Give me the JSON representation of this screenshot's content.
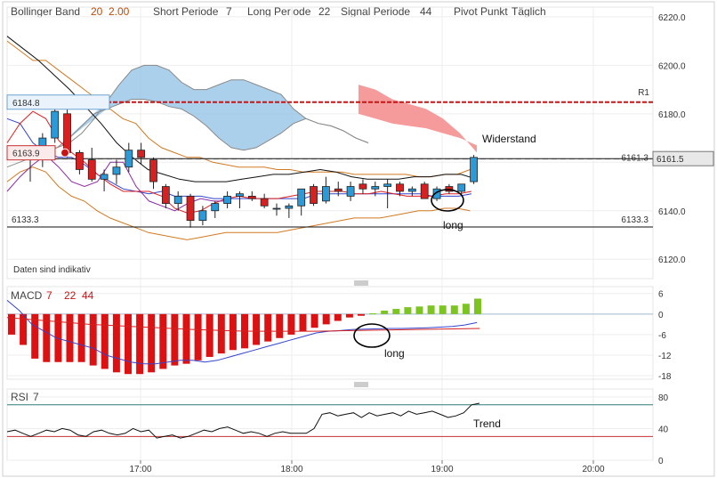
{
  "header": {
    "bollinger_label": "Bollinger Band",
    "bollinger_period": "20",
    "bollinger_dev": "2.00",
    "short_label": "Short Periode",
    "short_value": "7",
    "long_label": "Long Periode",
    "long_value": "22",
    "signal_label": "Signal Periode",
    "signal_value": "44",
    "pivot_label": "Pivot Punkt",
    "pivot_value": "Täglich"
  },
  "colors": {
    "up": "#2b9ad8",
    "down": "#d92020",
    "cloud_bull": "#8fc0e4",
    "cloud_bear": "#f48a8a",
    "macd_pos": "#7cc520",
    "macd_neg": "#dd1111",
    "pivot": "#c81414",
    "accent": "#c04a00"
  },
  "chart_data": [
    {
      "type": "candlestick",
      "title": "",
      "ylim": [
        6112,
        6224
      ],
      "yticks": [
        6120.0,
        6140.0,
        6160.0,
        6180.0,
        6200.0,
        6220.0
      ],
      "x_ticks": [
        "17:00",
        "18:00",
        "19:00",
        "20:00"
      ],
      "candles": [
        {
          "o": 6164,
          "h": 6167,
          "l": 6152,
          "c": 6166
        },
        {
          "o": 6166,
          "h": 6172,
          "l": 6158,
          "c": 6170
        },
        {
          "o": 6170,
          "h": 6184,
          "l": 6168,
          "c": 6181
        },
        {
          "o": 6180,
          "h": 6182,
          "l": 6162,
          "c": 6164
        },
        {
          "o": 6164,
          "h": 6165,
          "l": 6155,
          "c": 6157
        },
        {
          "o": 6161,
          "h": 6166,
          "l": 6152,
          "c": 6153
        },
        {
          "o": 6153,
          "h": 6157,
          "l": 6148,
          "c": 6155
        },
        {
          "o": 6155,
          "h": 6161,
          "l": 6151,
          "c": 6158
        },
        {
          "o": 6158,
          "h": 6168,
          "l": 6156,
          "c": 6165
        },
        {
          "o": 6165,
          "h": 6168,
          "l": 6159,
          "c": 6162
        },
        {
          "o": 6161,
          "h": 6162,
          "l": 6149,
          "c": 6152
        },
        {
          "o": 6150,
          "h": 6151,
          "l": 6141,
          "c": 6143
        },
        {
          "o": 6143,
          "h": 6148,
          "l": 6140,
          "c": 6146
        },
        {
          "o": 6146,
          "h": 6147,
          "l": 6133,
          "c": 6136
        },
        {
          "o": 6136,
          "h": 6142,
          "l": 6134,
          "c": 6140
        },
        {
          "o": 6140,
          "h": 6144,
          "l": 6137,
          "c": 6143
        },
        {
          "o": 6143,
          "h": 6148,
          "l": 6141,
          "c": 6146
        },
        {
          "o": 6146,
          "h": 6148,
          "l": 6141,
          "c": 6147
        },
        {
          "o": 6146,
          "h": 6148,
          "l": 6144,
          "c": 6145
        },
        {
          "o": 6145,
          "h": 6147,
          "l": 6141,
          "c": 6142
        },
        {
          "o": 6141,
          "h": 6143,
          "l": 6138,
          "c": 6141
        },
        {
          "o": 6141,
          "h": 6143,
          "l": 6137,
          "c": 6142
        },
        {
          "o": 6142,
          "h": 6149,
          "l": 6138,
          "c": 6149
        },
        {
          "o": 6150,
          "h": 6151,
          "l": 6142,
          "c": 6143
        },
        {
          "o": 6144,
          "h": 6154,
          "l": 6143,
          "c": 6150
        },
        {
          "o": 6149,
          "h": 6152,
          "l": 6146,
          "c": 6148
        },
        {
          "o": 6146,
          "h": 6152,
          "l": 6144,
          "c": 6150
        },
        {
          "o": 6151,
          "h": 6153,
          "l": 6147,
          "c": 6149
        },
        {
          "o": 6149,
          "h": 6152,
          "l": 6146,
          "c": 6150
        },
        {
          "o": 6150,
          "h": 6153,
          "l": 6141,
          "c": 6151
        },
        {
          "o": 6151,
          "h": 6152,
          "l": 6146,
          "c": 6148
        },
        {
          "o": 6148,
          "h": 6150,
          "l": 6146,
          "c": 6149
        },
        {
          "o": 6151,
          "h": 6152,
          "l": 6145,
          "c": 6145
        },
        {
          "o": 6145,
          "h": 6150,
          "l": 6144,
          "c": 6149
        },
        {
          "o": 6150,
          "h": 6151,
          "l": 6147,
          "c": 6148
        },
        {
          "o": 6148,
          "h": 6151,
          "l": 6146,
          "c": 6151
        },
        {
          "o": 6152,
          "h": 6163,
          "l": 6151,
          "c": 6162
        }
      ],
      "pivot_r1": {
        "label": "R1",
        "value": 6184.8
      },
      "last_price": 6161.5,
      "levels": [
        {
          "label": "6184.8",
          "value": 6184.8
        },
        {
          "label": "6163.9",
          "value": 6163.9
        },
        {
          "label": "6161.3",
          "value": 6161.3
        },
        {
          "label": "6133.3",
          "value": 6133.3
        }
      ],
      "bollinger_upper": [
        6210,
        6206,
        6202,
        6202,
        6198,
        6194,
        6190,
        6186,
        6182,
        6178,
        6176,
        6170,
        6166,
        6164,
        6162,
        6162,
        6160,
        6159,
        6158,
        6158,
        6158,
        6157,
        6157,
        6156,
        6156,
        6156,
        6156,
        6155,
        6155,
        6155,
        6155,
        6155,
        6154,
        6154,
        6155,
        6155,
        6157
      ],
      "bollinger_lower": [
        6152,
        6156,
        6158,
        6156,
        6150,
        6146,
        6144,
        6140,
        6137,
        6135,
        6133,
        6131,
        6130,
        6129,
        6128,
        6129,
        6130,
        6131,
        6131,
        6131,
        6131,
        6131,
        6132,
        6133,
        6134,
        6135,
        6136,
        6137,
        6137,
        6137,
        6138,
        6139,
        6140,
        6140,
        6141,
        6141,
        6140
      ],
      "cloud_a": [
        6158,
        6160,
        6162,
        6165,
        6166,
        6168,
        6172,
        6178,
        6185,
        6192,
        6198,
        6200,
        6200,
        6198,
        6193,
        6190,
        6190,
        6192,
        6194,
        6194,
        6192,
        6190,
        6188,
        6182,
        6178,
        6176,
        6175,
        6173,
        6170,
        6168
      ],
      "cloud_b": [
        6164,
        6164,
        6163,
        6164,
        6166,
        6170,
        6175,
        6180,
        6182,
        6184,
        6186,
        6186,
        6185,
        6183,
        6182,
        6179,
        6175,
        6170,
        6166,
        6165,
        6166,
        6169,
        6172,
        6176,
        6178,
        6176,
        6175,
        6173,
        6170,
        6168
      ],
      "kijun": [
        6178,
        6176,
        6168,
        6164,
        6162,
        6162,
        6159,
        6155,
        6152,
        6149,
        6148,
        6147,
        6148,
        6146,
        6146,
        6146,
        6145,
        6145,
        6145,
        6145,
        6145,
        6145,
        6145,
        6145,
        6147,
        6147,
        6147,
        6147,
        6147,
        6147,
        6147,
        6147,
        6147,
        6146,
        6146,
        6146,
        6147
      ],
      "tenkan": [
        6168,
        6176,
        6181,
        6178,
        6169,
        6164,
        6160,
        6155,
        6151,
        6148,
        6148,
        6148,
        6146,
        6141,
        6139,
        6140,
        6143,
        6145,
        6146,
        6145,
        6145,
        6145,
        6146,
        6147,
        6148,
        6148,
        6148,
        6147,
        6147,
        6148,
        6147,
        6146,
        6146,
        6146,
        6147,
        6147,
        6148
      ],
      "chikou": [
        6148,
        6154,
        6159,
        6163,
        6158,
        6152,
        6150,
        6152,
        6160,
        6160,
        6150,
        6144,
        6142,
        6140,
        6143,
        6145,
        6144,
        6144
      ],
      "kumo_upper_trail": [
        6212,
        6207,
        6202,
        6196,
        6190,
        6183,
        6176,
        6168,
        6162,
        6157,
        6155,
        6153,
        6152,
        6152,
        6152,
        6153,
        6154,
        6155,
        6155,
        6156,
        6157,
        6156,
        6154,
        6153,
        6153,
        6153,
        6154,
        6154,
        6155,
        6155,
        6153
      ],
      "annotations": [
        {
          "text": "Widerstand"
        },
        {
          "text": "long"
        }
      ]
    },
    {
      "type": "bar",
      "title": "MACD",
      "params": [
        "7",
        "22",
        "44"
      ],
      "ylim": [
        -19,
        8
      ],
      "yticks": [
        6,
        0,
        -6,
        -12,
        -18
      ],
      "histogram": [
        -6,
        -9,
        -13,
        -14,
        -14,
        -14,
        -14,
        -15,
        -16,
        -17,
        -17.5,
        -17.5,
        -17,
        -16,
        -15,
        -14.5,
        -13.5,
        -12.5,
        -11.5,
        -10.5,
        -10,
        -9,
        -8,
        -7,
        -6,
        -5,
        -4,
        -3,
        -2,
        -1,
        -0.5,
        0.2,
        1,
        1.5,
        2,
        2.2,
        2.5,
        2.5,
        2.5,
        3,
        4.5
      ],
      "macd_line": [
        4,
        1,
        -3,
        -5,
        -7,
        -8,
        -9,
        -10,
        -12,
        -13,
        -14,
        -14.5,
        -14.5,
        -14,
        -13.5,
        -13.5,
        -14,
        -13.5,
        -12.5,
        -11.5,
        -10.5,
        -9.5,
        -8.5,
        -7.5,
        -6.5,
        -5.5,
        -5,
        -4.8,
        -4.5,
        -4.4,
        -4.3,
        -4.2,
        -4.2,
        -4.1,
        -4.0,
        -3.8,
        -3.6,
        -3.2,
        -2.5
      ],
      "signal_line": [
        -1,
        -1.5,
        -2,
        -2.5,
        -3,
        -3.3,
        -3.6,
        -3.9,
        -4.2,
        -4.5,
        -4.7,
        -4.9,
        -5,
        -5,
        -5,
        -5,
        -4.9,
        -4.8,
        -4.7,
        -4.6,
        -4.5,
        -4.4,
        -4.3,
        -4.2
      ],
      "annotations": [
        {
          "text": "long"
        }
      ]
    },
    {
      "type": "line",
      "title": "RSI",
      "params": [
        "7"
      ],
      "ylim": [
        0,
        90
      ],
      "yticks": [
        80,
        40,
        0
      ],
      "levels": [
        70,
        30
      ],
      "values": [
        36,
        38,
        34,
        30,
        34,
        38,
        36,
        40,
        38,
        32,
        30,
        36,
        38,
        34,
        32,
        34,
        40,
        36,
        38,
        28,
        30,
        32,
        28,
        30,
        34,
        38,
        36,
        40,
        42,
        38,
        34,
        36,
        34,
        30,
        34,
        36,
        34,
        34,
        34,
        40,
        58,
        60,
        56,
        58,
        60,
        54,
        60,
        56,
        58,
        60,
        56,
        62,
        58,
        60,
        62,
        58,
        54,
        56,
        60,
        70,
        72
      ],
      "annotations": [
        {
          "text": "Trend"
        }
      ]
    }
  ]
}
